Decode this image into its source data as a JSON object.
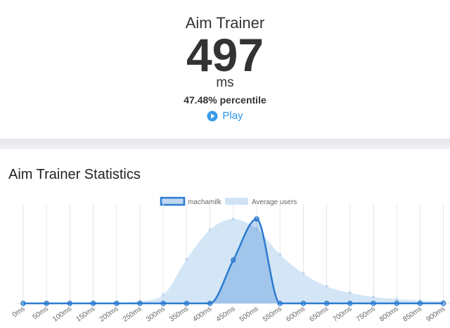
{
  "header": {
    "title": "Aim Trainer",
    "score": "497",
    "unit": "ms",
    "percentile": "47.48% percentile",
    "play": "Play"
  },
  "chart_data": {
    "type": "line",
    "title": "Aim Trainer Statistics",
    "categories": [
      "0ms",
      "50ms",
      "100ms",
      "150ms",
      "200ms",
      "250ms",
      "300ms",
      "350ms",
      "400ms",
      "450ms",
      "500ms",
      "550ms",
      "600ms",
      "650ms",
      "700ms",
      "750ms",
      "800ms",
      "850ms",
      "900ms"
    ],
    "series": [
      {
        "name": "machamilk",
        "color": "#2b7bd0",
        "values": [
          0,
          0,
          0,
          0,
          0,
          0,
          0,
          0,
          0,
          61,
          119,
          0,
          0,
          0,
          0,
          0,
          0,
          0,
          0
        ]
      },
      {
        "name": "Average users",
        "color": "#cfe3f5",
        "values": [
          0,
          0,
          0,
          0,
          0,
          3,
          12,
          62,
          104,
          119,
          105,
          69,
          42,
          24,
          15,
          9,
          6,
          4,
          3
        ]
      }
    ],
    "ylim": [
      0,
      130
    ],
    "grid": true
  }
}
